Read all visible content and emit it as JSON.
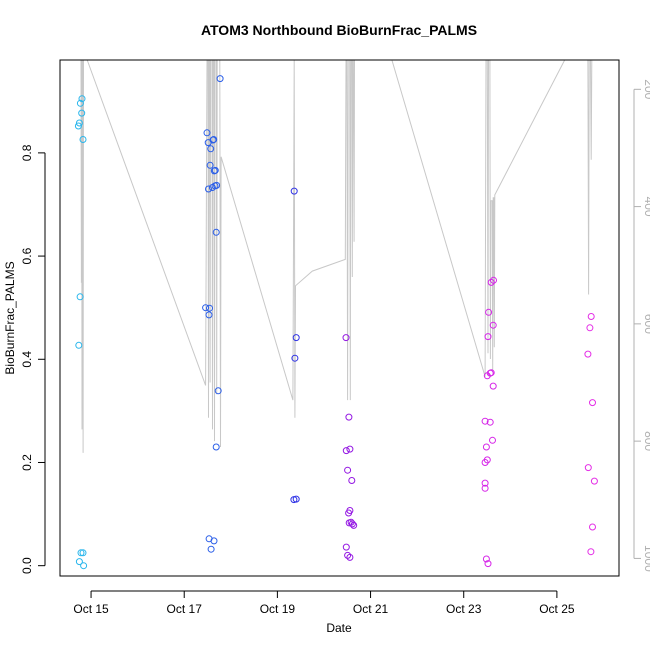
{
  "chart_data": {
    "type": "scatter",
    "title": "ATOM3 Northbound BioBurnFrac_PALMS",
    "xlabel": "Date",
    "ylabel": "BioBurnFrac_PALMS",
    "xlim": [
      "2016-10-14T08:00",
      "2016-10-26T08:00"
    ],
    "ylim": [
      -0.02,
      0.98
    ],
    "x_ticks": [
      {
        "x": "2016-10-15",
        "label": "Oct 15"
      },
      {
        "x": "2016-10-17",
        "label": "Oct 17"
      },
      {
        "x": "2016-10-19",
        "label": "Oct 19"
      },
      {
        "x": "2016-10-21",
        "label": "Oct 21"
      },
      {
        "x": "2016-10-23",
        "label": "Oct 23"
      },
      {
        "x": "2016-10-25",
        "label": "Oct 25"
      }
    ],
    "y_ticks": [
      0.0,
      0.2,
      0.4,
      0.6,
      0.8
    ],
    "y_tick_labels": [
      "0.0",
      "0.2",
      "0.4",
      "0.6",
      "0.8"
    ],
    "right_axis": {
      "ticks": [
        200,
        400,
        600,
        800,
        1000
      ],
      "tick_labels": [
        "200",
        "400",
        "600",
        "800",
        "1000"
      ],
      "range_top": 150,
      "range_bottom": 1030,
      "color": "#b0b0b0"
    },
    "grid": false,
    "pressure_trace": {
      "color": "#c8c8c8",
      "points": [
        [
          "2016-10-14T18:50",
          150
        ],
        [
          "2016-10-14T19:00",
          530
        ],
        [
          "2016-10-14T19:10",
          150
        ],
        [
          "2016-10-14T19:20",
          780
        ],
        [
          "2016-10-14T19:30",
          150
        ],
        [
          "2016-10-14T19:45",
          150
        ],
        [
          "2016-10-14T19:55",
          820
        ],
        [
          "2016-10-14T20:05",
          150
        ],
        [
          "2016-10-14T20:20",
          150
        ],
        [
          "2016-10-14T22:00",
          150
        ],
        [
          "2016-10-17T11:00",
          705
        ],
        [
          "2016-10-17T11:45",
          150
        ],
        [
          "2016-10-17T12:15",
          150
        ],
        [
          "2016-10-17T12:30",
          760
        ],
        [
          "2016-10-17T12:45",
          150
        ],
        [
          "2016-10-17T13:10",
          150
        ],
        [
          "2016-10-17T13:20",
          700
        ],
        [
          "2016-10-17T13:35",
          150
        ],
        [
          "2016-10-17T14:20",
          150
        ],
        [
          "2016-10-17T14:35",
          780
        ],
        [
          "2016-10-17T14:50",
          150
        ],
        [
          "2016-10-17T15:20",
          150
        ],
        [
          "2016-10-17T15:35",
          800
        ],
        [
          "2016-10-17T15:50",
          150
        ],
        [
          "2016-10-17T16:35",
          150
        ],
        [
          "2016-10-17T16:45",
          720
        ],
        [
          "2016-10-17T17:00",
          150
        ],
        [
          "2016-10-17T18:20",
          150
        ],
        [
          "2016-10-17T18:40",
          810
        ],
        [
          "2016-10-17T19:00",
          315
        ],
        [
          "2016-10-19T08:00",
          730
        ],
        [
          "2016-10-19T08:40",
          150
        ],
        [
          "2016-10-19T09:00",
          760
        ],
        [
          "2016-10-19T09:20",
          535
        ],
        [
          "2016-10-19T18:00",
          510
        ],
        [
          "2016-10-20T11:00",
          490
        ],
        [
          "2016-10-20T11:20",
          150
        ],
        [
          "2016-10-20T11:50",
          150
        ],
        [
          "2016-10-20T12:10",
          730
        ],
        [
          "2016-10-20T12:30",
          150
        ],
        [
          "2016-10-20T13:15",
          150
        ],
        [
          "2016-10-20T13:35",
          730
        ],
        [
          "2016-10-20T13:50",
          150
        ],
        [
          "2016-10-20T14:20",
          150
        ],
        [
          "2016-10-20T14:35",
          520
        ],
        [
          "2016-10-20T14:50",
          150
        ],
        [
          "2016-10-20T15:10",
          150
        ],
        [
          "2016-10-20T15:30",
          460
        ],
        [
          "2016-10-20T15:45",
          150
        ],
        [
          "2016-10-21T11:00",
          150
        ],
        [
          "2016-10-23T11:00",
          690
        ],
        [
          "2016-10-23T11:30",
          150
        ],
        [
          "2016-10-23T12:10",
          150
        ],
        [
          "2016-10-23T12:30",
          650
        ],
        [
          "2016-10-23T12:45",
          150
        ],
        [
          "2016-10-23T13:30",
          150
        ],
        [
          "2016-10-23T13:45",
          660
        ],
        [
          "2016-10-23T14:00",
          390
        ],
        [
          "2016-10-23T14:40",
          390
        ],
        [
          "2016-10-23T14:55",
          680
        ],
        [
          "2016-10-23T15:10",
          385
        ],
        [
          "2016-10-23T15:30",
          385
        ],
        [
          "2016-10-23T15:45",
          640
        ],
        [
          "2016-10-23T16:00",
          380
        ],
        [
          "2016-10-25T04:00",
          150
        ],
        [
          "2016-10-25T16:00",
          150
        ],
        [
          "2016-10-25T16:20",
          550
        ],
        [
          "2016-10-25T16:40",
          150
        ],
        [
          "2016-10-25T17:20",
          150
        ],
        [
          "2016-10-25T17:40",
          320
        ],
        [
          "2016-10-25T18:00",
          150
        ],
        [
          "2016-10-25T18:20",
          150
        ]
      ]
    },
    "series": [
      {
        "color": "#29b6ec",
        "points": [
          [
            "2016-10-14T17:30",
            0.852
          ],
          [
            "2016-10-14T18:00",
            0.858
          ],
          [
            "2016-10-14T18:30",
            0.896
          ],
          [
            "2016-10-14T19:10",
            0.877
          ],
          [
            "2016-10-14T19:20",
            0.905
          ],
          [
            "2016-10-14T19:50",
            0.826
          ],
          [
            "2016-10-14T18:20",
            0.521
          ],
          [
            "2016-10-14T17:40",
            0.427
          ],
          [
            "2016-10-14T18:00",
            0.008
          ],
          [
            "2016-10-14T18:50",
            0.025
          ],
          [
            "2016-10-14T19:50",
            0.025
          ],
          [
            "2016-10-14T20:10",
            0.0
          ]
        ]
      },
      {
        "color": "#2a5ee8",
        "points": [
          [
            "2016-10-17T11:00",
            0.5
          ],
          [
            "2016-10-17T11:45",
            0.839
          ],
          [
            "2016-10-17T12:20",
            0.82
          ],
          [
            "2016-10-17T12:30",
            0.73
          ],
          [
            "2016-10-17T12:45",
            0.486
          ],
          [
            "2016-10-17T13:00",
            0.499
          ],
          [
            "2016-10-17T13:20",
            0.776
          ],
          [
            "2016-10-17T13:40",
            0.808
          ],
          [
            "2016-10-17T14:50",
            0.825
          ],
          [
            "2016-10-17T15:10",
            0.826
          ],
          [
            "2016-10-17T14:30",
            0.733
          ],
          [
            "2016-10-17T15:30",
            0.765
          ],
          [
            "2016-10-17T16:00",
            0.766
          ],
          [
            "2016-10-17T15:50",
            0.736
          ],
          [
            "2016-10-17T16:40",
            0.737
          ],
          [
            "2016-10-17T16:30",
            0.646
          ],
          [
            "2016-10-17T17:30",
            0.339
          ],
          [
            "2016-10-17T16:30",
            0.23
          ],
          [
            "2016-10-17T18:30",
            0.944
          ],
          [
            "2016-10-17T12:50",
            0.052
          ],
          [
            "2016-10-17T13:50",
            0.032
          ],
          [
            "2016-10-17T15:20",
            0.048
          ]
        ]
      },
      {
        "color": "#2f32e6",
        "points": [
          [
            "2016-10-19T08:40",
            0.726
          ],
          [
            "2016-10-19T09:40",
            0.442
          ],
          [
            "2016-10-19T09:00",
            0.402
          ],
          [
            "2016-10-19T08:30",
            0.128
          ],
          [
            "2016-10-19T09:40",
            0.129
          ]
        ]
      },
      {
        "color": "#9418e3",
        "points": [
          [
            "2016-10-20T11:20",
            0.442
          ],
          [
            "2016-10-20T12:50",
            0.288
          ],
          [
            "2016-10-20T11:30",
            0.223
          ],
          [
            "2016-10-20T13:20",
            0.226
          ],
          [
            "2016-10-20T12:10",
            0.185
          ],
          [
            "2016-10-20T14:20",
            0.165
          ],
          [
            "2016-10-20T12:40",
            0.102
          ],
          [
            "2016-10-20T13:20",
            0.107
          ],
          [
            "2016-10-20T13:00",
            0.083
          ],
          [
            "2016-10-20T14:00",
            0.084
          ],
          [
            "2016-10-20T14:40",
            0.081
          ],
          [
            "2016-10-20T15:20",
            0.078
          ],
          [
            "2016-10-20T11:30",
            0.036
          ],
          [
            "2016-10-20T12:10",
            0.02
          ],
          [
            "2016-10-20T13:20",
            0.016
          ]
        ]
      },
      {
        "color": "#d626e8",
        "points": [
          [
            "2016-10-23T11:00",
            0.28
          ],
          [
            "2016-10-23T11:40",
            0.23
          ],
          [
            "2016-10-23T11:00",
            0.2
          ],
          [
            "2016-10-23T11:00",
            0.16
          ],
          [
            "2016-10-23T11:00",
            0.15
          ],
          [
            "2016-10-23T12:10",
            0.205
          ],
          [
            "2016-10-23T11:40",
            0.013
          ],
          [
            "2016-10-23T12:30",
            0.004
          ],
          [
            "2016-10-23T12:30",
            0.444
          ],
          [
            "2016-10-23T12:50",
            0.491
          ],
          [
            "2016-10-23T12:10",
            0.368
          ],
          [
            "2016-10-23T13:40",
            0.373
          ],
          [
            "2016-10-23T14:10",
            0.374
          ],
          [
            "2016-10-23T15:10",
            0.348
          ],
          [
            "2016-10-23T15:10",
            0.466
          ],
          [
            "2016-10-23T14:10",
            0.549
          ],
          [
            "2016-10-23T15:20",
            0.553
          ],
          [
            "2016-10-23T13:40",
            0.278
          ],
          [
            "2016-10-23T14:50",
            0.243
          ]
        ]
      },
      {
        "color": "#e42ee6",
        "points": [
          [
            "2016-10-25T16:00",
            0.41
          ],
          [
            "2016-10-25T17:00",
            0.461
          ],
          [
            "2016-10-25T17:40",
            0.483
          ],
          [
            "2016-10-25T18:20",
            0.316
          ],
          [
            "2016-10-25T16:10",
            0.19
          ],
          [
            "2016-10-25T19:20",
            0.164
          ],
          [
            "2016-10-25T18:20",
            0.075
          ],
          [
            "2016-10-25T17:30",
            0.027
          ]
        ]
      }
    ]
  }
}
